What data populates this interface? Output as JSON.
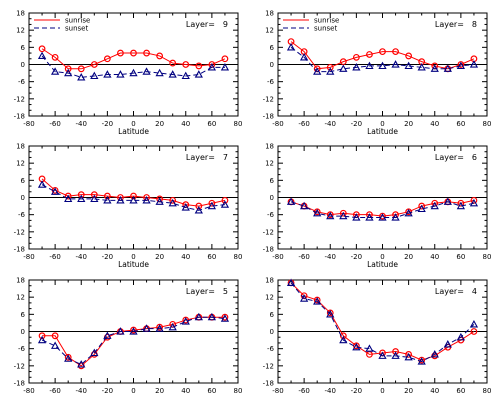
{
  "legend": {
    "sunrise_label": "sunrise",
    "sunset_label": "sunset"
  },
  "layer_prefix": "Layer=",
  "colors": {
    "sunrise": "#ff0000",
    "sunset": "#000080",
    "axes": "#000000",
    "zero_line": "#000000"
  },
  "chart_data": [
    {
      "type": "line",
      "layer": "9",
      "xlabel": "Latitude",
      "has_legend": true,
      "x": [
        -70,
        -60,
        -50,
        -40,
        -30,
        -20,
        -10,
        0,
        10,
        20,
        30,
        40,
        50,
        60,
        70
      ],
      "xlim": [
        -80,
        80
      ],
      "ylim": [
        -18,
        18
      ],
      "xticks": [
        -80,
        -60,
        -40,
        -20,
        0,
        20,
        40,
        60,
        80
      ],
      "yticks": [
        -18,
        -12,
        -6,
        0,
        6,
        12,
        18
      ],
      "series": [
        {
          "name": "sunrise",
          "marker": "circle",
          "values": [
            5.5,
            2.5,
            -1.5,
            -1.5,
            0,
            2,
            4,
            4,
            4,
            3,
            0.5,
            0,
            -0.5,
            0,
            2
          ]
        },
        {
          "name": "sunset",
          "marker": "triangle",
          "values": [
            3,
            -2.5,
            -3,
            -4.5,
            -4,
            -3.5,
            -3.5,
            -3,
            -2.5,
            -3,
            -3.5,
            -4,
            -3.5,
            -1,
            -1
          ]
        }
      ]
    },
    {
      "type": "line",
      "layer": "8",
      "xlabel": "Latitude",
      "has_legend": true,
      "x": [
        -70,
        -60,
        -50,
        -40,
        -30,
        -20,
        -10,
        0,
        10,
        20,
        30,
        40,
        50,
        60,
        70
      ],
      "xlim": [
        -80,
        80
      ],
      "ylim": [
        -18,
        18
      ],
      "xticks": [
        -80,
        -60,
        -40,
        -20,
        0,
        20,
        40,
        60,
        80
      ],
      "yticks": [
        -18,
        -12,
        -6,
        0,
        6,
        12,
        18
      ],
      "series": [
        {
          "name": "sunrise",
          "marker": "circle",
          "values": [
            8,
            4.5,
            -1.5,
            -1,
            1,
            2.5,
            3.5,
            4.5,
            4.5,
            3,
            1,
            -0.5,
            -1.5,
            0,
            2
          ]
        },
        {
          "name": "sunset",
          "marker": "triangle",
          "values": [
            6,
            2.5,
            -2.5,
            -2.5,
            -1.5,
            -1,
            -0.5,
            -0.5,
            0,
            -0.5,
            -1,
            -1.5,
            -1.5,
            -0.5,
            0
          ]
        }
      ]
    },
    {
      "type": "line",
      "layer": "7",
      "xlabel": "Latitude",
      "has_legend": false,
      "x": [
        -70,
        -60,
        -50,
        -40,
        -30,
        -20,
        -10,
        0,
        10,
        20,
        30,
        40,
        50,
        60,
        70
      ],
      "xlim": [
        -80,
        80
      ],
      "ylim": [
        -18,
        18
      ],
      "xticks": [
        -80,
        -60,
        -40,
        -20,
        0,
        20,
        40,
        60,
        80
      ],
      "yticks": [
        -18,
        -12,
        -6,
        0,
        6,
        12,
        18
      ],
      "series": [
        {
          "name": "sunrise",
          "marker": "circle",
          "values": [
            6.5,
            2.5,
            0.5,
            1,
            1,
            0.5,
            0,
            0.5,
            0,
            -0.5,
            -1,
            -2.5,
            -3,
            -2,
            -1
          ]
        },
        {
          "name": "sunset",
          "marker": "triangle",
          "values": [
            4.5,
            2,
            -0.5,
            -0.5,
            -0.5,
            -1,
            -1,
            -1,
            -1,
            -1.5,
            -2,
            -3.5,
            -4.5,
            -3,
            -2.5
          ]
        }
      ]
    },
    {
      "type": "line",
      "layer": "6",
      "xlabel": "Latitude",
      "has_legend": false,
      "x": [
        -70,
        -60,
        -50,
        -40,
        -30,
        -20,
        -10,
        0,
        10,
        20,
        30,
        40,
        50,
        60,
        70
      ],
      "xlim": [
        -80,
        80
      ],
      "ylim": [
        -18,
        18
      ],
      "xticks": [
        -80,
        -60,
        -40,
        -20,
        0,
        20,
        40,
        60,
        80
      ],
      "yticks": [
        -18,
        -12,
        -6,
        0,
        6,
        12,
        18
      ],
      "series": [
        {
          "name": "sunrise",
          "marker": "circle",
          "values": [
            -1.5,
            -3,
            -5,
            -6,
            -5.5,
            -6,
            -6,
            -6.5,
            -6,
            -5,
            -3,
            -2,
            -1.5,
            -2,
            -1
          ]
        },
        {
          "name": "sunset",
          "marker": "triangle",
          "values": [
            -1.5,
            -3,
            -5.5,
            -6.5,
            -6.5,
            -7,
            -7,
            -7,
            -7,
            -5.5,
            -4,
            -3,
            -1.5,
            -3,
            -2
          ]
        }
      ]
    },
    {
      "type": "line",
      "layer": "5",
      "xlabel": "",
      "has_legend": false,
      "x": [
        -70,
        -60,
        -50,
        -40,
        -30,
        -20,
        -10,
        0,
        10,
        20,
        30,
        40,
        50,
        60,
        70
      ],
      "xlim": [
        -80,
        80
      ],
      "ylim": [
        -18,
        18
      ],
      "xticks": [
        -80,
        -60,
        -40,
        -20,
        0,
        20,
        40,
        60,
        80
      ],
      "yticks": [
        -18,
        -12,
        -6,
        0,
        6,
        12,
        18
      ],
      "series": [
        {
          "name": "sunrise",
          "marker": "circle",
          "values": [
            -1.5,
            -1.5,
            -9,
            -12,
            -8,
            -2,
            0,
            0.5,
            1,
            1.5,
            2.5,
            4,
            5,
            5,
            5
          ]
        },
        {
          "name": "sunset",
          "marker": "triangle",
          "values": [
            -3,
            -5,
            -9.5,
            -11.5,
            -7.5,
            -1.5,
            0,
            0,
            1,
            1,
            1.5,
            3.5,
            5,
            5,
            4.5
          ]
        }
      ]
    },
    {
      "type": "line",
      "layer": "4",
      "xlabel": "",
      "has_legend": false,
      "x": [
        -70,
        -60,
        -50,
        -40,
        -30,
        -20,
        -10,
        0,
        10,
        20,
        30,
        40,
        50,
        60,
        70
      ],
      "xlim": [
        -80,
        80
      ],
      "ylim": [
        -18,
        18
      ],
      "xticks": [
        -80,
        -60,
        -40,
        -20,
        0,
        20,
        40,
        60,
        80
      ],
      "yticks": [
        -18,
        -12,
        -6,
        0,
        6,
        12,
        18
      ],
      "series": [
        {
          "name": "sunrise",
          "marker": "circle",
          "values": [
            17,
            12.5,
            11,
            6.5,
            -1.5,
            -5,
            -8,
            -7.5,
            -7,
            -8,
            -10,
            -8.5,
            -5.5,
            -3,
            0
          ]
        },
        {
          "name": "sunset",
          "marker": "triangle",
          "values": [
            17,
            11.5,
            10.5,
            6,
            -3,
            -5.5,
            -6,
            -8.5,
            -8.5,
            -9,
            -10.5,
            -8,
            -4.5,
            -2,
            2.5
          ]
        }
      ]
    }
  ]
}
